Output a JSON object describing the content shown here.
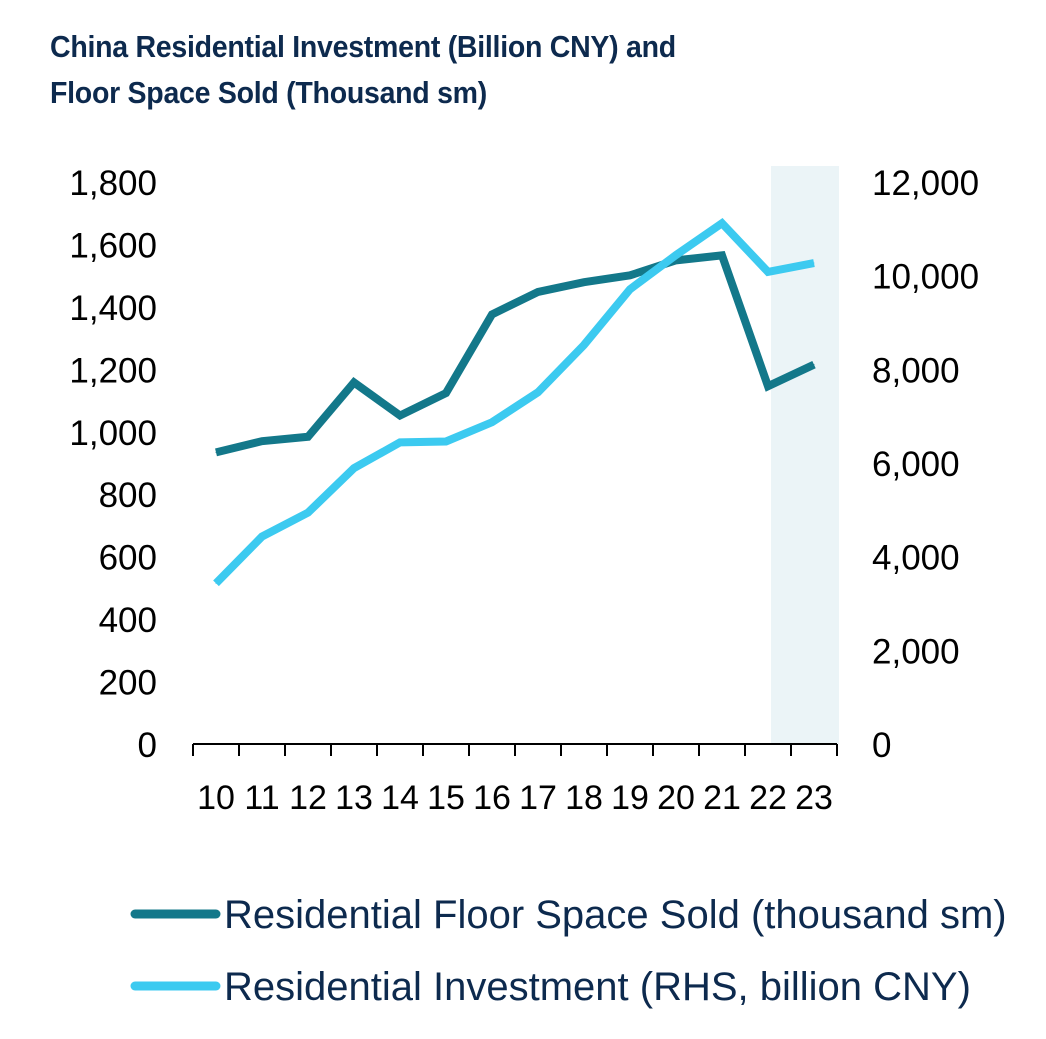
{
  "chart_data": {
    "type": "line",
    "title_line1": "China Residential Investment (Billion CNY) and",
    "title_line2": "Floor Space Sold (Thousand sm)",
    "categories": [
      "10",
      "11",
      "12",
      "13",
      "14",
      "15",
      "16",
      "17",
      "18",
      "19",
      "20",
      "21",
      "22",
      "23"
    ],
    "y_left": {
      "ylim": [
        0,
        1800
      ],
      "ticks": [
        "0",
        "200",
        "400",
        "600",
        "800",
        "1,000",
        "1,200",
        "1,400",
        "1,600",
        "1,800"
      ]
    },
    "y_right": {
      "ylim": [
        0,
        12000
      ],
      "ticks": [
        "0",
        "2,000",
        "4,000",
        "6,000",
        "8,000",
        "10,000",
        "12,000"
      ]
    },
    "series": [
      {
        "name": "Residential Floor Space Sold (thousand sm)",
        "axis": "left",
        "color": "#13788a",
        "values": [
          934,
          970,
          984,
          1158,
          1052,
          1124,
          1376,
          1448,
          1479,
          1501,
          1549,
          1565,
          1146,
          1215
        ]
      },
      {
        "name": "Residential Investment (RHS, billion CNY)",
        "axis": "right",
        "color": "#3ccaf0",
        "values": [
          3430,
          4430,
          4940,
          5890,
          6440,
          6460,
          6870,
          7510,
          8520,
          9710,
          10440,
          11120,
          10080,
          10270
        ]
      }
    ],
    "shaded_region": {
      "from_category": "22",
      "to_category": "23",
      "color": "#ebf4f7"
    }
  }
}
